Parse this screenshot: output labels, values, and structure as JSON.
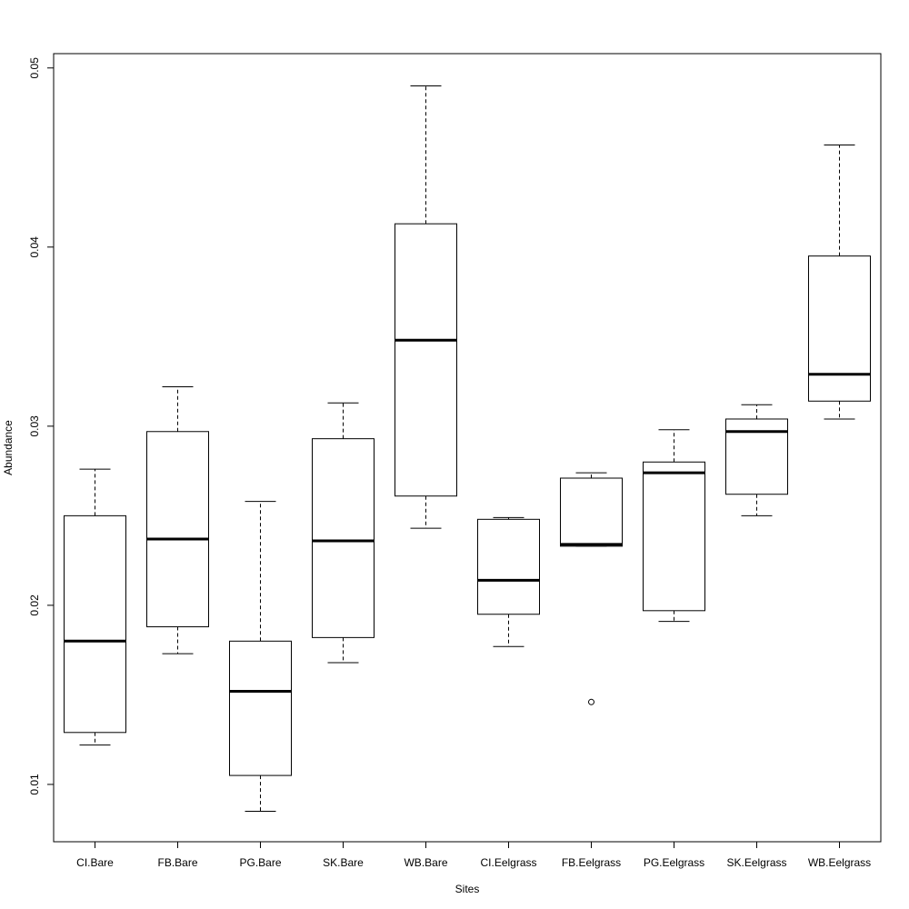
{
  "chart_data": {
    "type": "boxplot",
    "xlabel": "Sites",
    "ylabel": "Abundance",
    "ylim": [
      0.0068,
      0.0508
    ],
    "yticks": [
      0.01,
      0.02,
      0.03,
      0.04,
      0.05
    ],
    "ytick_labels": [
      "0.01",
      "0.02",
      "0.03",
      "0.04",
      "0.05"
    ],
    "categories": [
      "CI.Bare",
      "FB.Bare",
      "PG.Bare",
      "SK.Bare",
      "WB.Bare",
      "CI.Eelgrass",
      "FB.Eelgrass",
      "PG.Eelgrass",
      "SK.Eelgrass",
      "WB.Eelgrass"
    ],
    "boxes": [
      {
        "whisker_low": 0.0122,
        "q1": 0.0129,
        "median": 0.018,
        "q3": 0.025,
        "whisker_high": 0.0276,
        "outliers": []
      },
      {
        "whisker_low": 0.0173,
        "q1": 0.0188,
        "median": 0.0237,
        "q3": 0.0297,
        "whisker_high": 0.0322,
        "outliers": []
      },
      {
        "whisker_low": 0.0085,
        "q1": 0.0105,
        "median": 0.0152,
        "q3": 0.018,
        "whisker_high": 0.0258,
        "outliers": []
      },
      {
        "whisker_low": 0.0168,
        "q1": 0.0182,
        "median": 0.0236,
        "q3": 0.0293,
        "whisker_high": 0.0313,
        "outliers": []
      },
      {
        "whisker_low": 0.0243,
        "q1": 0.0261,
        "median": 0.0348,
        "q3": 0.0413,
        "whisker_high": 0.049,
        "outliers": []
      },
      {
        "whisker_low": 0.0177,
        "q1": 0.0195,
        "median": 0.0214,
        "q3": 0.0248,
        "whisker_high": 0.0249,
        "outliers": []
      },
      {
        "whisker_low": 0.0233,
        "q1": 0.0233,
        "median": 0.0234,
        "q3": 0.0271,
        "whisker_high": 0.0274,
        "outliers": [
          0.0146
        ]
      },
      {
        "whisker_low": 0.0191,
        "q1": 0.0197,
        "median": 0.0274,
        "q3": 0.028,
        "whisker_high": 0.0298,
        "outliers": []
      },
      {
        "whisker_low": 0.025,
        "q1": 0.0262,
        "median": 0.0297,
        "q3": 0.0304,
        "whisker_high": 0.0312,
        "outliers": []
      },
      {
        "whisker_low": 0.0304,
        "q1": 0.0314,
        "median": 0.0329,
        "q3": 0.0395,
        "whisker_high": 0.0457,
        "outliers": []
      }
    ]
  }
}
